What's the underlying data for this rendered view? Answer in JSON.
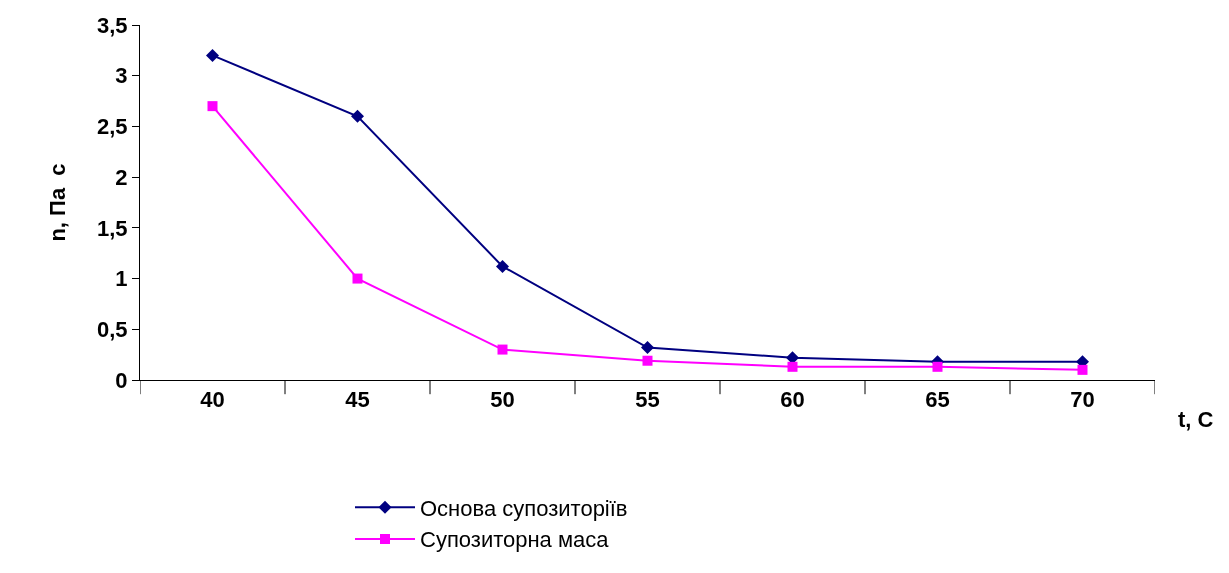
{
  "chart_data": {
    "type": "line",
    "categories": [
      "40",
      "45",
      "50",
      "55",
      "60",
      "65",
      "70"
    ],
    "xlabel": "t, C",
    "ylabel": "n, Па  с",
    "ylim": [
      0,
      3.5
    ],
    "yticks": [
      {
        "value": 0,
        "label": "0"
      },
      {
        "value": 0.5,
        "label": "0,5"
      },
      {
        "value": 1,
        "label": "1"
      },
      {
        "value": 1.5,
        "label": "1,5"
      },
      {
        "value": 2,
        "label": "2"
      },
      {
        "value": 2.5,
        "label": "2,5"
      },
      {
        "value": 3,
        "label": "3"
      },
      {
        "value": 3.5,
        "label": "3,5"
      }
    ],
    "grid": false,
    "legend": "bottom",
    "line_style": "solid",
    "series": [
      {
        "name": "Основа супозиторіїв",
        "color": "#000080",
        "marker": "diamond",
        "values": [
          3.2,
          2.6,
          1.12,
          0.32,
          0.22,
          0.18,
          0.18
        ]
      },
      {
        "name": "Супозиторна маса",
        "color": "#ff00ff",
        "marker": "square",
        "values": [
          2.7,
          1.0,
          0.3,
          0.19,
          0.13,
          0.13,
          0.1
        ]
      }
    ]
  }
}
